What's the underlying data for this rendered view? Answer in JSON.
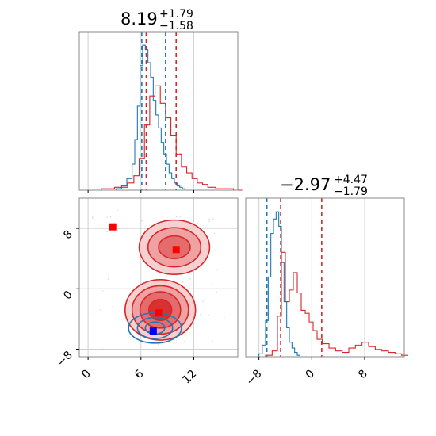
{
  "colors": {
    "blue": "#1f77b4",
    "red": "#d62728",
    "marker_blue": "#0000ff",
    "marker_red": "#ff0000",
    "grid": "#d0d0d0",
    "frame": "#888888"
  },
  "chart_data": [
    {
      "type": "area",
      "panel": "marginal-x",
      "title": {
        "value": "8.19",
        "upper": "+1.79",
        "lower": "−1.58"
      },
      "grid": true,
      "xlim": [
        -1,
        17
      ],
      "x_ticks": [
        0,
        6,
        12
      ],
      "dashed_lines": [
        {
          "series": "blue",
          "x": [
            6.1,
            8.8
          ]
        },
        {
          "series": "red",
          "x": [
            6.6,
            10.0
          ]
        }
      ],
      "series": [
        {
          "color": "blue",
          "bins": [
            3.2,
            3.8,
            4.4,
            5.0,
            5.3,
            5.6,
            5.9,
            6.2,
            6.5,
            6.8,
            7.1,
            7.4,
            7.7,
            8.0,
            8.3,
            8.6,
            8.9,
            9.2,
            9.5,
            9.8,
            10.1,
            10.4,
            10.7,
            11.0
          ],
          "values": [
            0.01,
            0.03,
            0.08,
            0.18,
            0.35,
            0.58,
            0.86,
            1.0,
            0.97,
            0.88,
            0.78,
            0.62,
            0.52,
            0.43,
            0.33,
            0.25,
            0.18,
            0.12,
            0.08,
            0.05,
            0.03,
            0.02,
            0.01,
            0.0
          ]
        },
        {
          "color": "red",
          "bins": [
            0.0,
            1.5,
            3.0,
            4.5,
            5.2,
            5.8,
            6.4,
            7.0,
            7.6,
            8.2,
            8.8,
            9.4,
            10.0,
            10.6,
            11.2,
            11.8,
            12.4,
            13.0,
            13.6,
            14.5,
            15.5,
            16.5
          ],
          "values": [
            0.0,
            0.01,
            0.02,
            0.05,
            0.1,
            0.22,
            0.45,
            0.65,
            0.72,
            0.6,
            0.5,
            0.38,
            0.25,
            0.16,
            0.12,
            0.08,
            0.05,
            0.04,
            0.02,
            0.01,
            0.01,
            0.0
          ]
        }
      ]
    },
    {
      "type": "scatter",
      "panel": "joint",
      "grid": true,
      "xlim": [
        -1,
        17
      ],
      "ylim": [
        -9,
        12
      ],
      "x_ticks": [
        0,
        6,
        12
      ],
      "y_ticks": [
        -8,
        0,
        8
      ],
      "markers": [
        {
          "color": "marker_red",
          "x": 2.8,
          "y": 8.2
        },
        {
          "color": "marker_red",
          "x": 10.0,
          "y": 5.2
        },
        {
          "color": "marker_red",
          "x": 8.0,
          "y": -3.2
        },
        {
          "color": "marker_blue",
          "x": 7.4,
          "y": -5.6
        }
      ],
      "contours": [
        {
          "series": "red",
          "center": [
            8.2,
            -2.8
          ],
          "levels": [
            [
              4.0,
              4.0
            ],
            [
              3.2,
              3.2
            ],
            [
              2.3,
              2.4
            ],
            [
              1.3,
              1.4
            ]
          ]
        },
        {
          "series": "red",
          "center": [
            9.8,
            5.5
          ],
          "levels": [
            [
              4.0,
              3.6
            ],
            [
              3.0,
              2.6
            ],
            [
              1.8,
              1.5
            ]
          ]
        },
        {
          "series": "blue",
          "center": [
            7.6,
            -5.2
          ],
          "levels": [
            [
              3.0,
              2.0
            ],
            [
              2.0,
              1.4
            ],
            [
              1.1,
              0.8
            ]
          ]
        }
      ]
    },
    {
      "type": "area",
      "panel": "marginal-y",
      "title": {
        "value": "−2.97",
        "upper": "+4.47",
        "lower": "−1.79"
      },
      "grid": true,
      "xlim": [
        -10,
        14
      ],
      "x_ticks": [
        -8,
        0,
        8
      ],
      "dashed_lines": [
        {
          "series": "blue",
          "x": [
            -6.8,
            -4.7
          ]
        },
        {
          "series": "red",
          "x": [
            -4.7,
            1.5
          ]
        }
      ],
      "series": [
        {
          "color": "blue",
          "bins": [
            -8.0,
            -7.5,
            -7.0,
            -6.6,
            -6.2,
            -5.8,
            -5.4,
            -5.0,
            -4.6,
            -4.2,
            -3.8,
            -3.4,
            -3.0,
            -2.6,
            -2.2,
            -1.8
          ],
          "values": [
            0.02,
            0.08,
            0.25,
            0.55,
            0.85,
            0.95,
            1.0,
            0.9,
            0.65,
            0.38,
            0.2,
            0.1,
            0.06,
            0.03,
            0.01,
            0.0
          ]
        },
        {
          "color": "red",
          "bins": [
            -8.0,
            -7.0,
            -6.0,
            -5.2,
            -4.6,
            -4.0,
            -3.4,
            -2.8,
            -2.2,
            -1.6,
            -1.0,
            -0.4,
            0.2,
            0.8,
            1.6,
            2.6,
            3.6,
            4.6,
            5.6,
            6.6,
            7.6,
            8.6,
            9.6,
            10.6,
            11.6,
            12.6,
            13.6
          ],
          "values": [
            0.0,
            0.01,
            0.04,
            0.28,
            0.72,
            0.38,
            0.46,
            0.58,
            0.44,
            0.32,
            0.3,
            0.24,
            0.18,
            0.12,
            0.09,
            0.06,
            0.04,
            0.03,
            0.06,
            0.08,
            0.1,
            0.07,
            0.05,
            0.04,
            0.03,
            0.02,
            0.01
          ]
        }
      ]
    }
  ]
}
